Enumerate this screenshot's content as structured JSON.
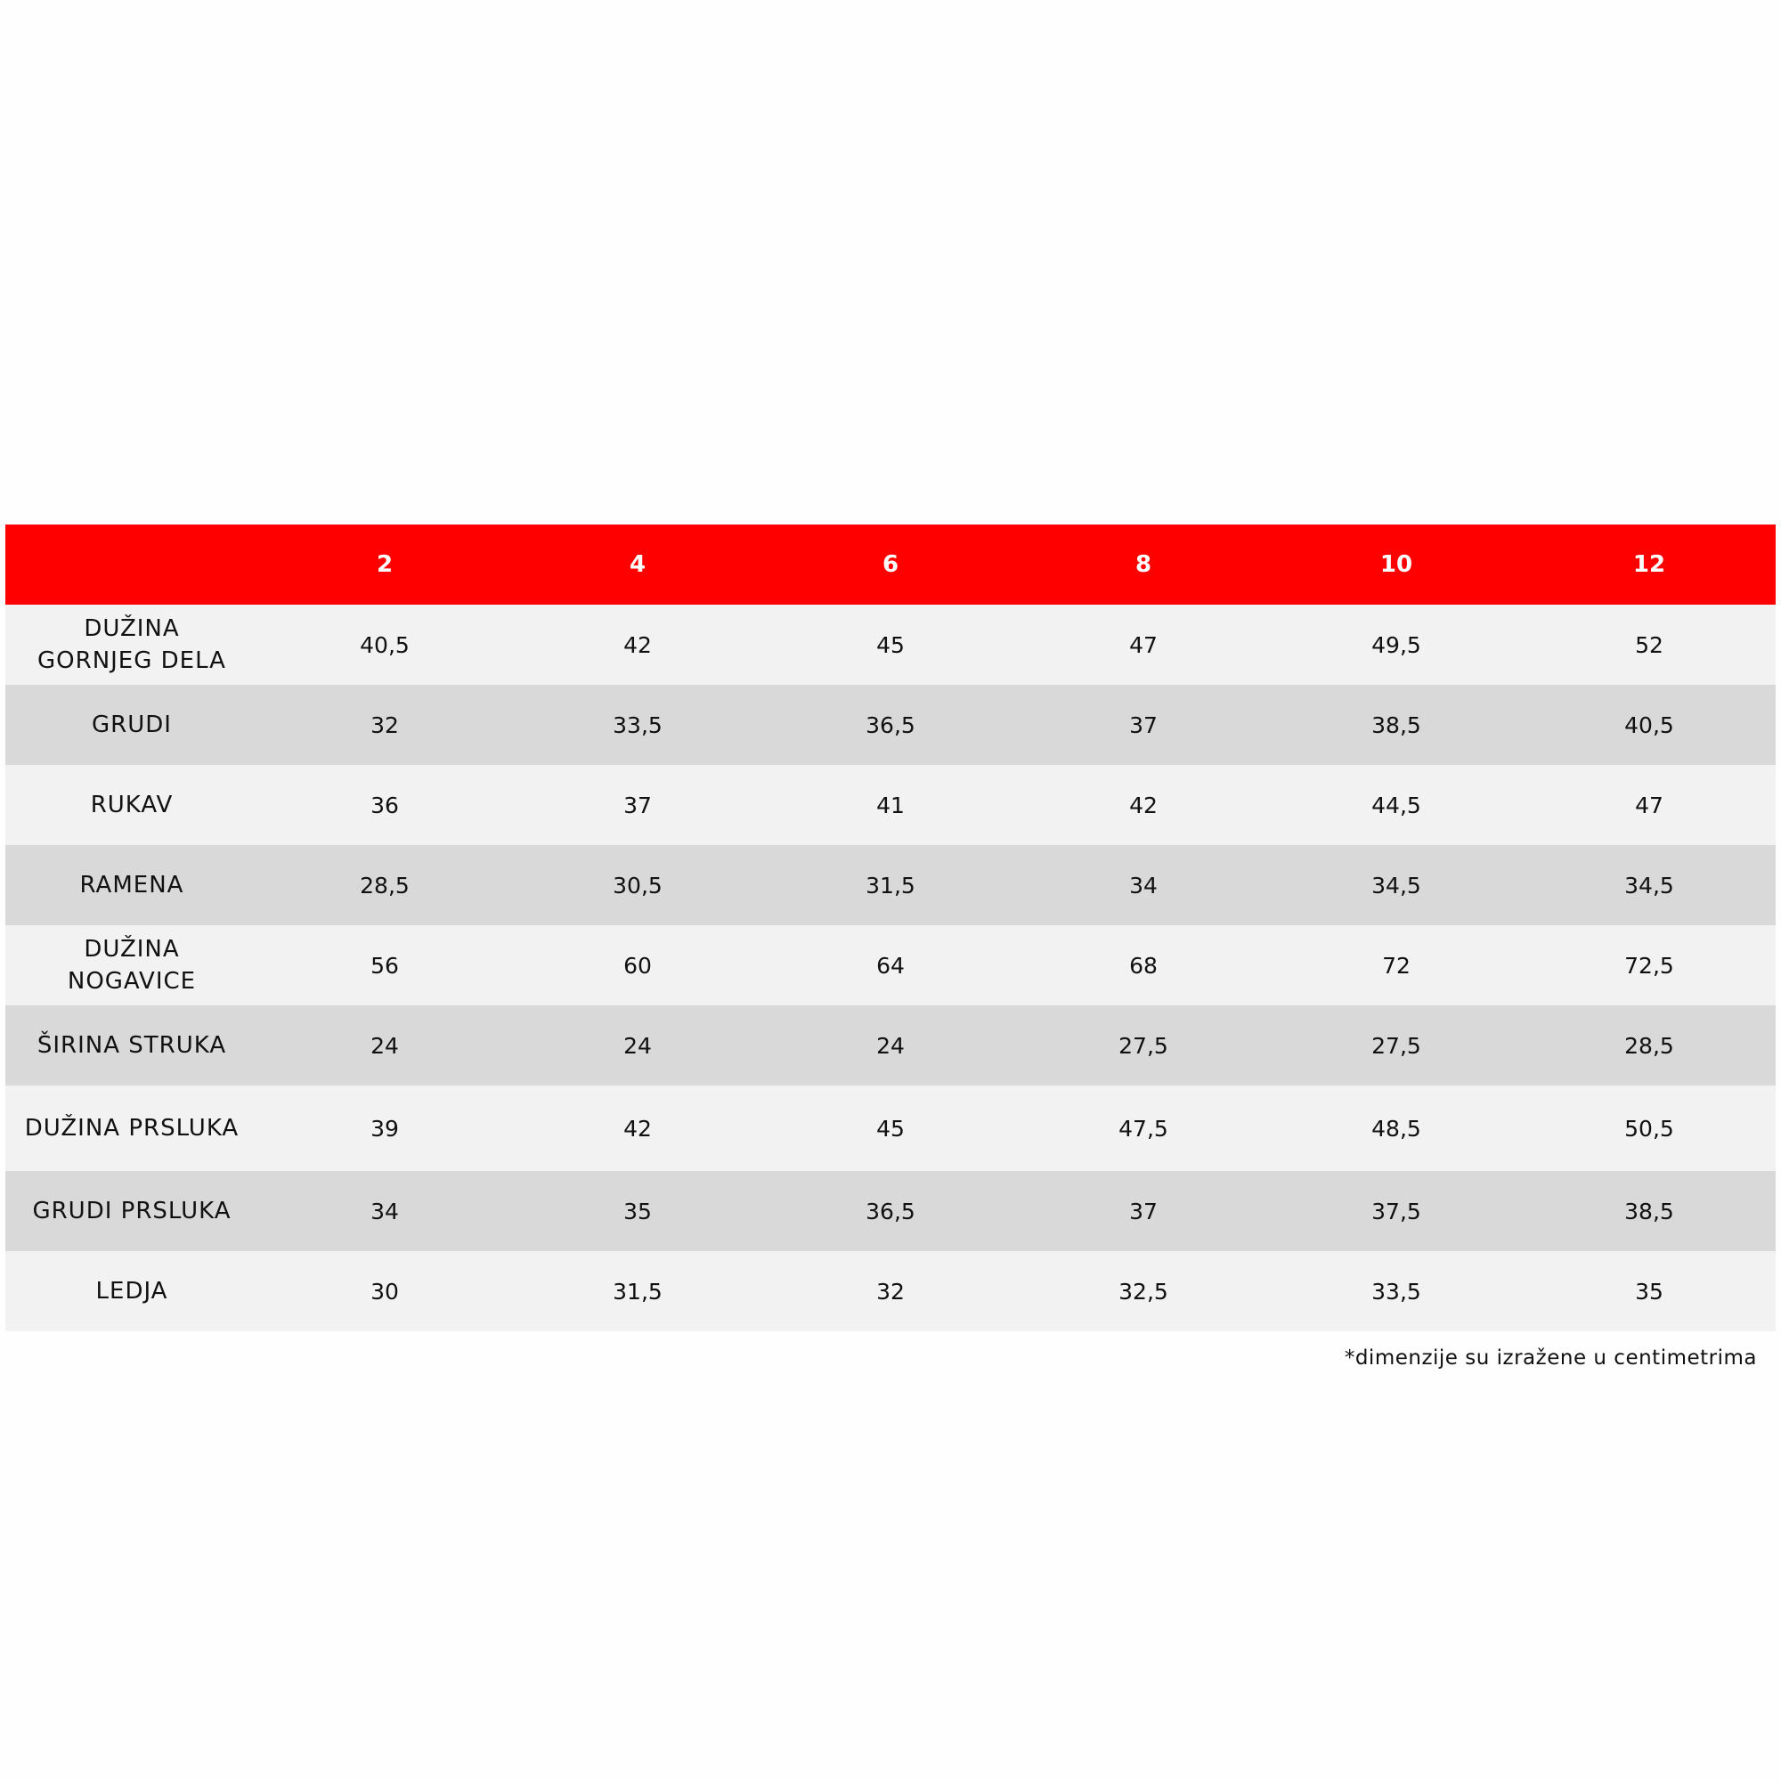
{
  "table": {
    "header_color": "#ff0000",
    "sizes": [
      "2",
      "4",
      "6",
      "8",
      "10",
      "12"
    ],
    "rows": [
      {
        "label": "DUŽINA GORNJEG DELA",
        "values": [
          "40,5",
          "42",
          "45",
          "47",
          "49,5",
          "52"
        ]
      },
      {
        "label": "GRUDI",
        "values": [
          "32",
          "33,5",
          "36,5",
          "37",
          "38,5",
          "40,5"
        ]
      },
      {
        "label": "RUKAV",
        "values": [
          "36",
          "37",
          "41",
          "42",
          "44,5",
          "47"
        ]
      },
      {
        "label": "RAMENA",
        "values": [
          "28,5",
          "30,5",
          "31,5",
          "34",
          "34,5",
          "34,5"
        ]
      },
      {
        "label": "DUŽINA NOGAVICE",
        "values": [
          "56",
          "60",
          "64",
          "68",
          "72",
          "72,5"
        ]
      },
      {
        "label": "ŠIRINA STRUKA",
        "values": [
          "24",
          "24",
          "24",
          "27,5",
          "27,5",
          "28,5"
        ]
      },
      {
        "label": "DUŽINA PRSLUKA",
        "values": [
          "39",
          "42",
          "45",
          "47,5",
          "48,5",
          "50,5"
        ]
      },
      {
        "label": "GRUDI PRSLUKA",
        "values": [
          "34",
          "35",
          "36,5",
          "37",
          "37,5",
          "38,5"
        ]
      },
      {
        "label": "LEDJA",
        "values": [
          "30",
          "31,5",
          "32",
          "32,5",
          "33,5",
          "35"
        ]
      }
    ]
  },
  "footnote": "*dimenzije su izražene u centimetrima"
}
